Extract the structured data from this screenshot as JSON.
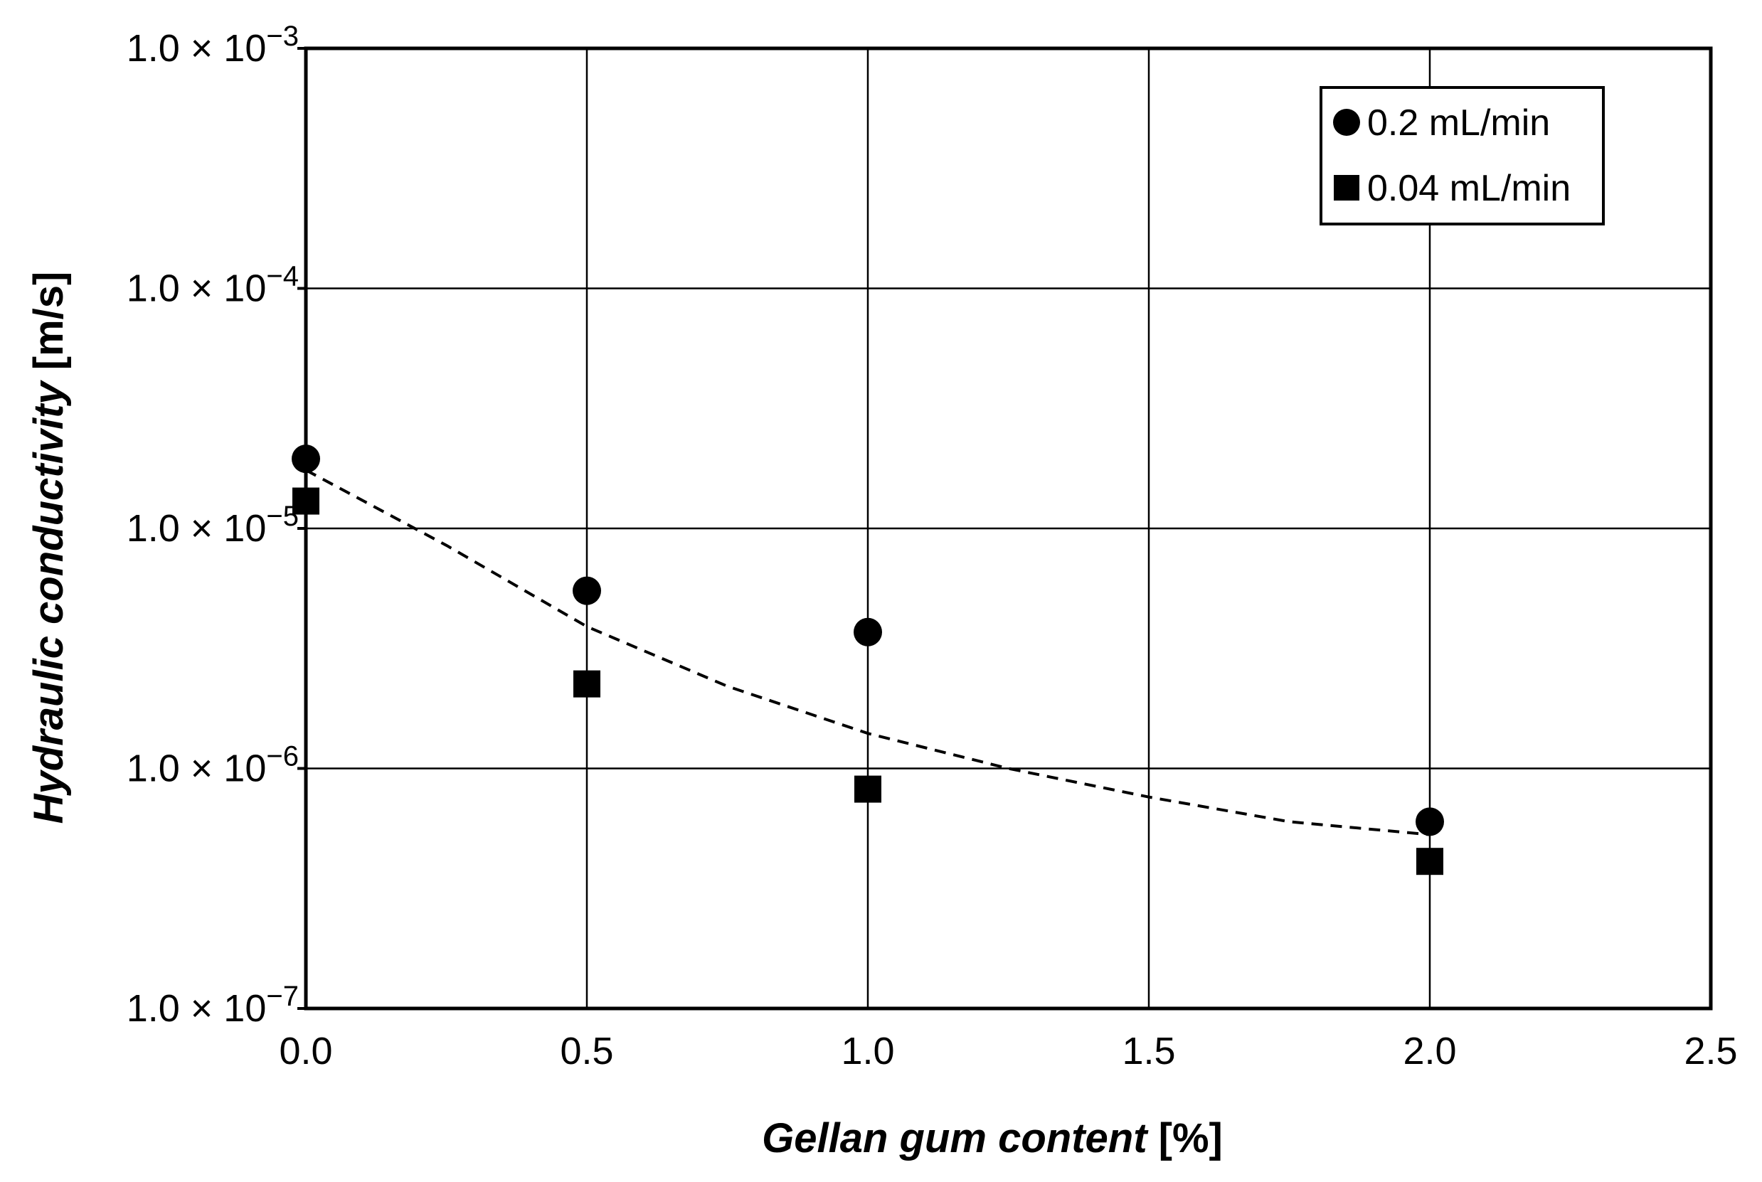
{
  "chart_data": {
    "type": "scatter",
    "title": "",
    "xlabel": {
      "italic": "Gellan gum content",
      "unit": " [%]"
    },
    "ylabel": {
      "italic": "Hydraulic conductivity",
      "unit": " [m/s]"
    },
    "xlim": [
      0,
      2.5
    ],
    "ylim": [
      1e-07,
      0.001
    ],
    "y_scale": "log",
    "grid": true,
    "legend_position": "top-right",
    "x_ticks": [
      {
        "value": 0.0,
        "label": "0.0"
      },
      {
        "value": 0.5,
        "label": "0.5"
      },
      {
        "value": 1.0,
        "label": "1.0"
      },
      {
        "value": 1.5,
        "label": "1.5"
      },
      {
        "value": 2.0,
        "label": "2.0"
      },
      {
        "value": 2.5,
        "label": "2.5"
      }
    ],
    "y_ticks": [
      {
        "value": 1e-07,
        "mantissa": "1.0 × 10",
        "exponent": "−7"
      },
      {
        "value": 1e-06,
        "mantissa": "1.0 × 10",
        "exponent": "−6"
      },
      {
        "value": 1e-05,
        "mantissa": "1.0 × 10",
        "exponent": "−5"
      },
      {
        "value": 0.0001,
        "mantissa": "1.0 × 10",
        "exponent": "−4"
      },
      {
        "value": 0.001,
        "mantissa": "1.0 × 10",
        "exponent": "−3"
      }
    ],
    "series": [
      {
        "name": "0.2 mL/min",
        "marker": "circle",
        "color": "#000000",
        "points": [
          {
            "x": 0.0,
            "y": 1.95e-05
          },
          {
            "x": 0.5,
            "y": 5.5e-06
          },
          {
            "x": 1.0,
            "y": 3.7e-06
          },
          {
            "x": 2.0,
            "y": 6e-07
          }
        ]
      },
      {
        "name": "0.04 mL/min",
        "marker": "square",
        "color": "#000000",
        "points": [
          {
            "x": 0.0,
            "y": 1.3e-05
          },
          {
            "x": 0.5,
            "y": 2.25e-06
          },
          {
            "x": 1.0,
            "y": 8.2e-07
          },
          {
            "x": 2.0,
            "y": 4.1e-07
          }
        ]
      }
    ],
    "trendline": {
      "style": "dashed",
      "color": "#000000",
      "points": [
        {
          "x": 0.0,
          "y": 1.75e-05
        },
        {
          "x": 0.25,
          "y": 8.5e-06
        },
        {
          "x": 0.5,
          "y": 3.9e-06
        },
        {
          "x": 0.75,
          "y": 2.2e-06
        },
        {
          "x": 1.0,
          "y": 1.4e-06
        },
        {
          "x": 1.25,
          "y": 1e-06
        },
        {
          "x": 1.5,
          "y": 7.6e-07
        },
        {
          "x": 1.75,
          "y": 6e-07
        },
        {
          "x": 2.0,
          "y": 5.3e-07
        }
      ]
    }
  }
}
